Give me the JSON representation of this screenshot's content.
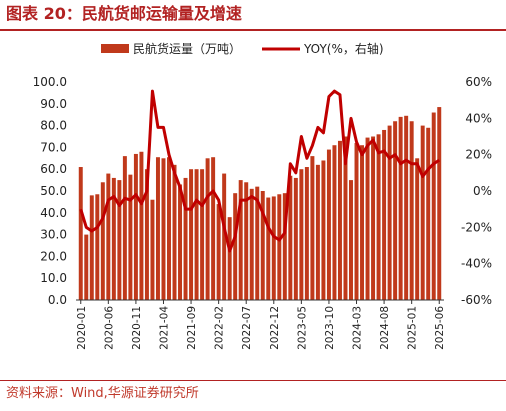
{
  "figure": {
    "title": "图表 20：民航货邮运输量及增速",
    "source": "资料来源：Wind,华源证券研究所"
  },
  "colors": {
    "bar": "#c0391b",
    "line": "#c00000",
    "title": "#b22222",
    "source": "#c0392b"
  },
  "chart_data": {
    "type": "bar",
    "title": "",
    "xlabel": "",
    "ylabel": "",
    "ylim": [
      0,
      100
    ],
    "y2lim": [
      -60,
      60
    ],
    "grid": false,
    "legend_position": "top",
    "yticks": [
      "0.0",
      "10.0",
      "20.0",
      "30.0",
      "40.0",
      "50.0",
      "60.0",
      "70.0",
      "80.0",
      "90.0",
      "100.0"
    ],
    "y2ticks": [
      "-60%",
      "-40%",
      "-20%",
      "0%",
      "20%",
      "40%",
      "60%"
    ],
    "xticks": [
      "2020-01",
      "2020-06",
      "2020-11",
      "2021-04",
      "2021-09",
      "2022-02",
      "2022-07",
      "2022-12",
      "2023-05",
      "2023-10",
      "2024-03",
      "2024-08",
      "2025-01",
      "2025-06"
    ],
    "categories": [
      "2020-01",
      "2020-02",
      "2020-03",
      "2020-04",
      "2020-05",
      "2020-06",
      "2020-07",
      "2020-08",
      "2020-09",
      "2020-10",
      "2020-11",
      "2020-12",
      "2021-01",
      "2021-02",
      "2021-03",
      "2021-04",
      "2021-05",
      "2021-06",
      "2021-07",
      "2021-08",
      "2021-09",
      "2021-10",
      "2021-11",
      "2021-12",
      "2022-01",
      "2022-02",
      "2022-03",
      "2022-04",
      "2022-05",
      "2022-06",
      "2022-07",
      "2022-08",
      "2022-09",
      "2022-10",
      "2022-11",
      "2022-12",
      "2023-01",
      "2023-02",
      "2023-03",
      "2023-04",
      "2023-05",
      "2023-06",
      "2023-07",
      "2023-08",
      "2023-09",
      "2023-10",
      "2023-11",
      "2023-12",
      "2024-01",
      "2024-02",
      "2024-03",
      "2024-04",
      "2024-05",
      "2024-06",
      "2024-07",
      "2024-08",
      "2024-09",
      "2024-10",
      "2024-11",
      "2024-12",
      "2025-01",
      "2025-02",
      "2025-03",
      "2025-04",
      "2025-05",
      "2025-06"
    ],
    "series": [
      {
        "name": "民航货运量（万吨）",
        "type": "bar",
        "axis": "left",
        "values": [
          61.0,
          30.0,
          48.0,
          48.5,
          54.0,
          58.0,
          56.0,
          55.0,
          66.0,
          57.5,
          67.0,
          68.0,
          60.0,
          46.0,
          65.5,
          65.0,
          65.5,
          62.0,
          53.0,
          56.0,
          60.0,
          60.0,
          60.0,
          65.0,
          65.5,
          44.0,
          58.0,
          38.0,
          49.0,
          55.0,
          54.0,
          51.0,
          52.0,
          50.0,
          47.0,
          47.5,
          48.5,
          49.0,
          57.0,
          56.0,
          60.0,
          61.0,
          66.0,
          62.0,
          64.0,
          69.0,
          71.0,
          73.0,
          75.0,
          55.0,
          72.0,
          71.0,
          74.5,
          75.0,
          76.0,
          78.0,
          80.0,
          82.0,
          84.0,
          84.5,
          82.0,
          65.0,
          80.0,
          79.0,
          86.0,
          88.5
        ]
      },
      {
        "name": "YOY(%，右轴)",
        "type": "line",
        "axis": "right",
        "values": [
          -10,
          -20,
          -22,
          -20,
          -15,
          -5,
          -3,
          -8,
          -4,
          -5,
          -2,
          -7,
          0,
          55,
          35,
          35,
          20,
          10,
          2,
          -10,
          -10,
          -5,
          -8,
          -3,
          0,
          -5,
          -20,
          -33,
          -25,
          -5,
          -5,
          -3,
          -5,
          -12,
          -20,
          -25,
          -27,
          -23,
          15,
          10,
          30,
          18,
          25,
          35,
          32,
          52,
          55,
          53,
          15,
          40,
          27,
          20,
          25,
          28,
          21,
          22,
          18,
          20,
          15,
          17,
          15,
          15,
          8,
          12,
          15,
          17
        ]
      }
    ]
  }
}
